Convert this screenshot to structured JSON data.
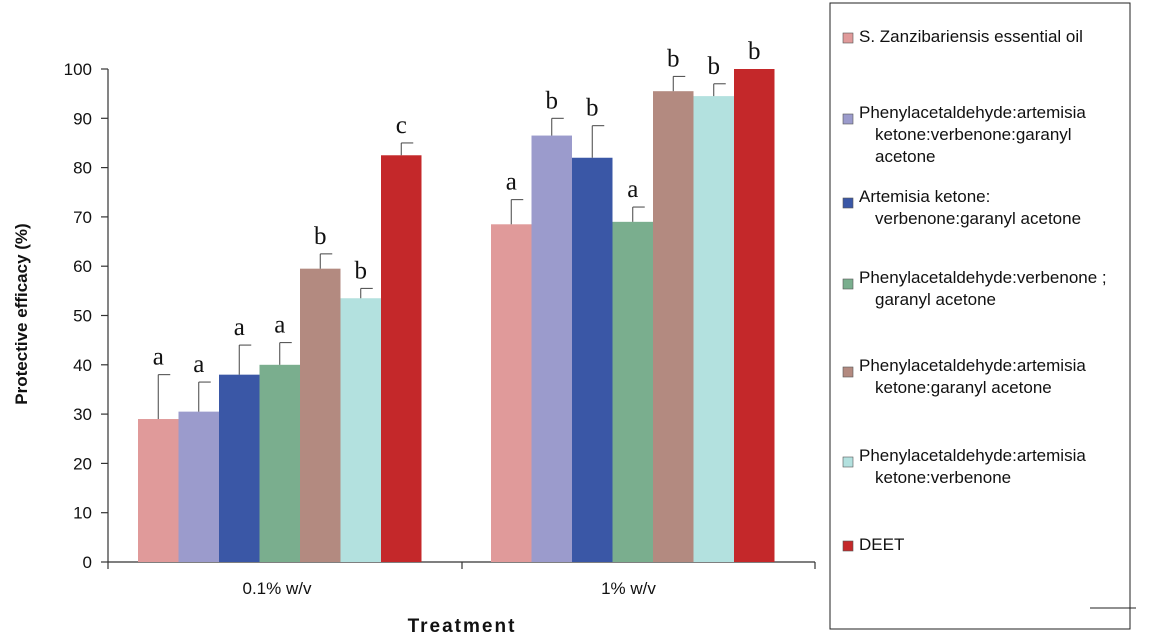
{
  "chart_data": {
    "type": "bar",
    "title": "",
    "xlabel": "Treatment",
    "ylabel": "Protective efficacy (%)",
    "ylim": [
      0,
      100
    ],
    "yticks": [
      0,
      10,
      20,
      30,
      40,
      50,
      60,
      70,
      80,
      90,
      100
    ],
    "grid": false,
    "legend_position": "right",
    "categories": [
      "0.1% w/v",
      "1% w/v"
    ],
    "series": [
      {
        "name": "S. Zanzibariensis essential oil",
        "legend_lines": [
          "S. Zanzibariensis essential oil"
        ],
        "color": "#e09a9a",
        "values": [
          29,
          68.5
        ],
        "errors": [
          9,
          5
        ],
        "labels": [
          "a",
          "a"
        ]
      },
      {
        "name": "Phenylacetaldehyde:artemisia ketone:verbenone:garanyl acetone",
        "legend_lines": [
          "Phenylacetaldehyde:artemisia",
          "ketone:verbenone:garanyl",
          "acetone"
        ],
        "color": "#9b9bcc",
        "values": [
          30.5,
          86.5
        ],
        "errors": [
          6,
          3.5
        ],
        "labels": [
          "a",
          "b"
        ]
      },
      {
        "name": "Artemisia ketone: verbenone:garanyl acetone",
        "legend_lines": [
          "Artemisia ketone:",
          "verbenone:garanyl acetone"
        ],
        "color": "#3a57a6",
        "values": [
          38,
          82
        ],
        "errors": [
          6,
          6.5
        ],
        "labels": [
          "a",
          "b"
        ]
      },
      {
        "name": "Phenylacetaldehyde:verbenone ; garanyl acetone",
        "legend_lines": [
          "Phenylacetaldehyde:verbenone ;",
          "garanyl acetone"
        ],
        "color": "#7aae8e",
        "values": [
          40,
          69
        ],
        "errors": [
          4.5,
          3
        ],
        "labels": [
          "a",
          "a"
        ]
      },
      {
        "name": "Phenylacetaldehyde:artemisia ketone:garanyl acetone",
        "legend_lines": [
          "Phenylacetaldehyde:artemisia",
          "ketone:garanyl acetone"
        ],
        "color": "#b38a80",
        "values": [
          59.5,
          95.5
        ],
        "errors": [
          3,
          3
        ],
        "labels": [
          "b",
          "b"
        ]
      },
      {
        "name": "Phenylacetaldehyde:artemisia ketone:verbenone",
        "legend_lines": [
          "Phenylacetaldehyde:artemisia",
          "ketone:verbenone"
        ],
        "color": "#b3e1df",
        "values": [
          53.5,
          94.5
        ],
        "errors": [
          2,
          2.5
        ],
        "labels": [
          "b",
          "b"
        ]
      },
      {
        "name": "DEET",
        "legend_lines": [
          "DEET"
        ],
        "color": "#c4282a",
        "values": [
          82.5,
          100
        ],
        "errors": [
          2.5,
          0
        ],
        "labels": [
          "c",
          "b"
        ]
      }
    ]
  }
}
